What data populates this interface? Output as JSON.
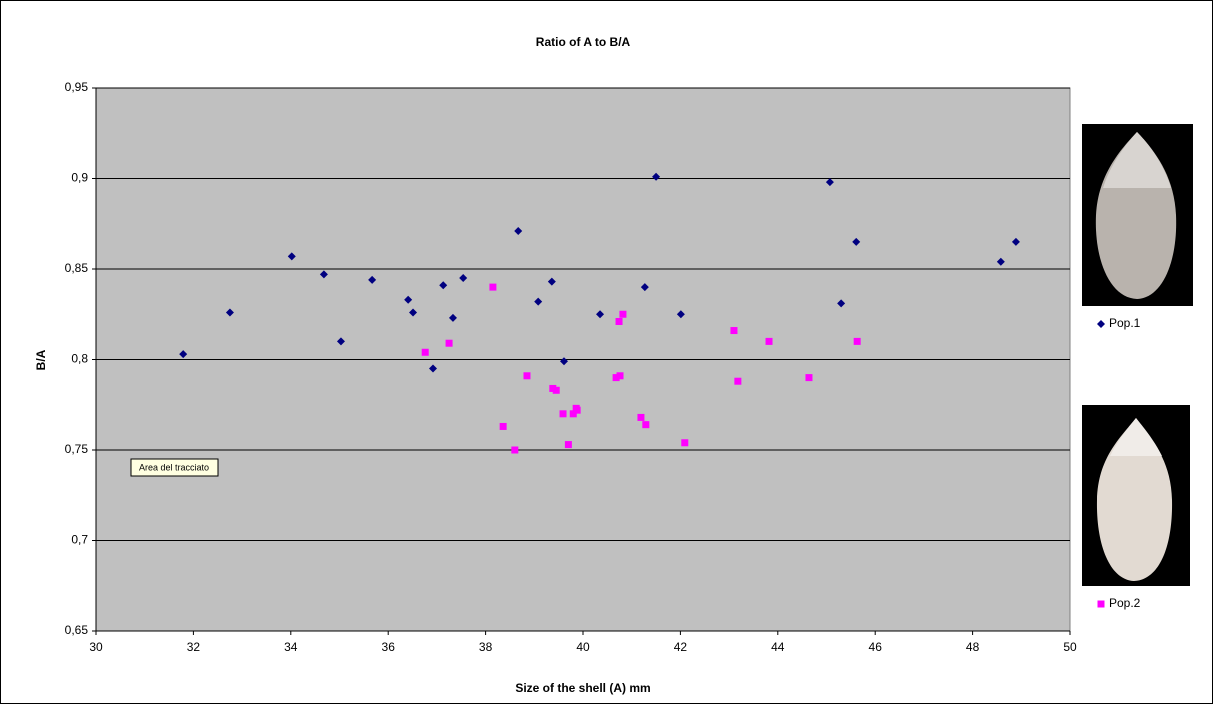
{
  "chart_data": {
    "type": "scatter",
    "title": "Ratio of  A  to  B/A",
    "x_label": "Size of the shell (A) mm",
    "y_label": "B/A",
    "annotation": "Area del tracciato",
    "xlim": [
      30,
      50
    ],
    "xticks": [
      30,
      32,
      34,
      36,
      38,
      40,
      42,
      44,
      46,
      48,
      50
    ],
    "ylim": [
      0.65,
      0.95
    ],
    "yticks": [
      {
        "value": 0.65,
        "label": "0,65"
      },
      {
        "value": 0.7,
        "label": "0,7"
      },
      {
        "value": 0.75,
        "label": "0,75"
      },
      {
        "value": 0.8,
        "label": "0,8"
      },
      {
        "value": 0.85,
        "label": "0,85"
      },
      {
        "value": 0.9,
        "label": "0,9"
      },
      {
        "value": 0.95,
        "label": "0,95"
      }
    ],
    "grid": true,
    "series": [
      {
        "name": "Pop.1",
        "color": "#000080",
        "marker": "diamond",
        "x": [
          31.79,
          32.75,
          34.02,
          34.68,
          35.03,
          35.67,
          36.41,
          36.51,
          36.92,
          37.13,
          37.33,
          37.54,
          38.67,
          39.08,
          39.36,
          39.61,
          40.35,
          41.27,
          41.5,
          42.01,
          45.07,
          45.3,
          45.61,
          48.58,
          48.89
        ],
        "values": [
          0.803,
          0.826,
          0.857,
          0.847,
          0.81,
          0.844,
          0.833,
          0.826,
          0.795,
          0.841,
          0.823,
          0.845,
          0.871,
          0.832,
          0.843,
          0.799,
          0.825,
          0.84,
          0.901,
          0.825,
          0.898,
          0.831,
          0.865,
          0.854,
          0.865
        ]
      },
      {
        "name": "Pop.2",
        "color": "#ff00ff",
        "marker": "square",
        "x": [
          36.76,
          37.25,
          38.15,
          38.36,
          38.6,
          38.85,
          39.38,
          39.45,
          39.59,
          39.7,
          39.8,
          39.86,
          39.88,
          40.68,
          40.74,
          40.76,
          40.82,
          41.19,
          41.29,
          42.09,
          43.1,
          43.18,
          43.82,
          44.64,
          45.63
        ],
        "values": [
          0.804,
          0.809,
          0.84,
          0.763,
          0.75,
          0.791,
          0.784,
          0.783,
          0.77,
          0.753,
          0.77,
          0.773,
          0.772,
          0.79,
          0.821,
          0.791,
          0.825,
          0.768,
          0.764,
          0.754,
          0.816,
          0.788,
          0.81,
          0.79,
          0.81
        ]
      }
    ]
  }
}
